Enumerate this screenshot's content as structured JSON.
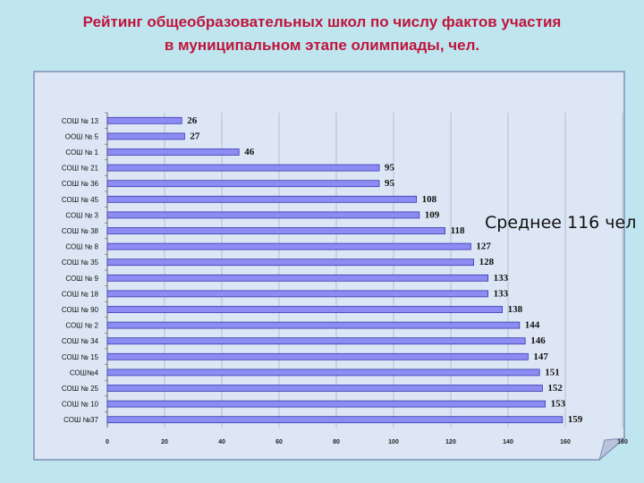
{
  "title": {
    "line1": "Рейтинг общеобразовательных школ по числу фактов участия",
    "line2": "в  муниципальном этапе олимпиады, чел."
  },
  "annotation": "Среднее 116 чел",
  "colors": {
    "background": "#bfe6ef",
    "panel": "#dde6f5",
    "bar_fill": "#8c8cf2",
    "bar_stroke": "#3a3ab0",
    "title": "#c0143c"
  },
  "chart_data": {
    "type": "bar",
    "orientation": "horizontal",
    "categories": [
      "СОШ № 13",
      "ООШ № 5",
      "СОШ № 1",
      "СОШ № 21",
      "СОШ № 36",
      "СОШ № 45",
      "СОШ № 3",
      "СОШ № 38",
      "СОШ № 8",
      "СОШ № 35",
      "СОШ № 9",
      "СОШ № 18",
      "СОШ № 90",
      "СОШ № 2",
      "СОШ № 34",
      "СОШ № 15",
      "СОШ№4",
      "СОШ № 25",
      "СОШ № 10",
      "СОШ №37"
    ],
    "values": [
      26,
      27,
      46,
      95,
      95,
      108,
      109,
      118,
      127,
      128,
      133,
      133,
      138,
      144,
      146,
      147,
      151,
      152,
      153,
      159
    ],
    "xlim": [
      0,
      180
    ],
    "xticks": [
      0,
      20,
      40,
      60,
      80,
      100,
      120,
      140,
      160,
      180
    ],
    "xtick_labels": [
      "0",
      "20",
      "40",
      "60",
      "80",
      "100",
      "120",
      "140",
      "160",
      "180"
    ],
    "grid": "vertical",
    "legend": "none"
  }
}
